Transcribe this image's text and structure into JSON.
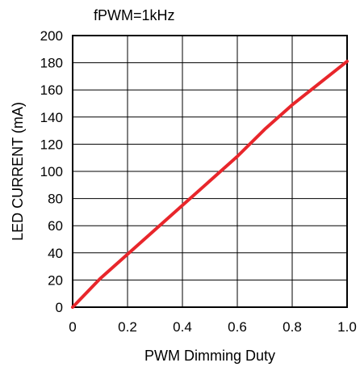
{
  "chart_data": {
    "type": "line",
    "condition_label": "fPWM=1kHz",
    "xlabel": "PWM Dimming Duty",
    "ylabel": "LED CURRENT (mA)",
    "xlim": [
      0,
      1.0
    ],
    "ylim": [
      0,
      200
    ],
    "x_ticks": [
      "0",
      "0.2",
      "0.4",
      "0.6",
      "0.8",
      "1.0"
    ],
    "y_ticks": [
      "0",
      "20",
      "40",
      "60",
      "80",
      "100",
      "120",
      "140",
      "160",
      "180",
      "200"
    ],
    "x_tick_values": [
      0,
      0.2,
      0.4,
      0.6,
      0.8,
      1.0
    ],
    "y_tick_values": [
      0,
      20,
      40,
      60,
      80,
      100,
      120,
      140,
      160,
      180,
      200
    ],
    "grid": true,
    "series_color": "#e8262b",
    "series": [
      {
        "x": [
          0,
          0.1,
          0.2,
          0.3,
          0.4,
          0.5,
          0.6,
          0.7,
          0.8,
          0.9,
          1.0
        ],
        "y": [
          0,
          21,
          39,
          57,
          75,
          93,
          111,
          131,
          149,
          165,
          181
        ]
      }
    ]
  }
}
